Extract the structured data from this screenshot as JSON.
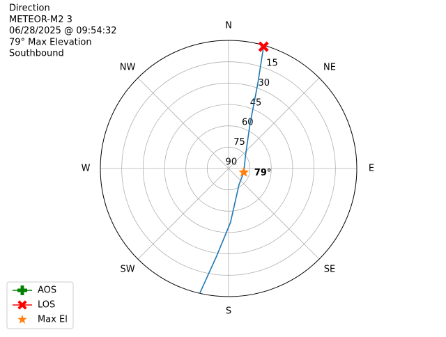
{
  "chart_data": {
    "type": "polar",
    "title_lines": [
      "Direction",
      "METEOR-M2 3",
      "06/28/2025 @ 09:54:32",
      "79° Max Elevation",
      "Southbound"
    ],
    "xticks": [
      {
        "value": 0,
        "label": "N"
      },
      {
        "value": 45,
        "label": "NE"
      },
      {
        "value": 90,
        "label": "E"
      },
      {
        "value": 135,
        "label": "SE"
      },
      {
        "value": 180,
        "label": "S"
      },
      {
        "value": 225,
        "label": "SW"
      },
      {
        "value": 270,
        "label": "W"
      },
      {
        "value": 315,
        "label": "NW"
      }
    ],
    "ylim": [
      90,
      0
    ],
    "yticks": [
      15,
      30,
      45,
      60,
      75,
      90
    ],
    "grid": true,
    "track": {
      "color": "#1f77b4",
      "x": [
        193,
        188,
        178,
        147,
        104,
        55,
        26,
        19,
        16
      ],
      "values": [
        0,
        27,
        52,
        76.5,
        79,
        75.6,
        56,
        27,
        1
      ]
    },
    "series": [
      {
        "name": "AOS",
        "color": "#008000",
        "marker": "plus"
      },
      {
        "name": "LOS",
        "color": "#ff0000",
        "marker": "x",
        "x": [
          16
        ],
        "values": [
          1
        ]
      },
      {
        "name": "Max El",
        "color": "#ff7f0e",
        "marker": "star",
        "x": [
          104
        ],
        "values": [
          79
        ],
        "value_labels": [
          "79°"
        ]
      }
    ],
    "legend": "lower left"
  }
}
